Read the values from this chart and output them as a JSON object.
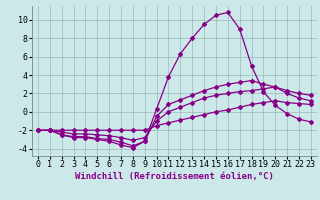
{
  "xlabel": "Windchill (Refroidissement éolien,°C)",
  "bg_color": "#cce8e8",
  "line_color": "#880088",
  "grid_color": "#99bbbb",
  "xlim": [
    -0.5,
    23.5
  ],
  "ylim": [
    -4.8,
    11.5
  ],
  "yticks": [
    -4,
    -2,
    0,
    2,
    4,
    6,
    8,
    10
  ],
  "xticks": [
    0,
    1,
    2,
    3,
    4,
    5,
    6,
    7,
    8,
    9,
    10,
    11,
    12,
    13,
    14,
    15,
    16,
    17,
    18,
    19,
    20,
    21,
    22,
    23
  ],
  "series1_x": [
    0,
    1,
    2,
    3,
    4,
    5,
    6,
    7,
    8,
    9,
    10,
    11,
    12,
    13,
    14,
    15,
    16,
    17,
    18,
    19,
    20,
    21,
    22,
    23
  ],
  "series1_y": [
    -2.0,
    -2.0,
    -2.0,
    -2.0,
    -2.0,
    -2.0,
    -2.0,
    -2.0,
    -2.0,
    -2.0,
    -1.5,
    -1.2,
    -0.9,
    -0.6,
    -0.3,
    0.0,
    0.2,
    0.5,
    0.8,
    1.0,
    1.2,
    1.0,
    0.9,
    0.8
  ],
  "series2_x": [
    0,
    1,
    2,
    3,
    4,
    5,
    6,
    7,
    8,
    9,
    10,
    11,
    12,
    13,
    14,
    15,
    16,
    17,
    18,
    19,
    20,
    21,
    22,
    23
  ],
  "series2_y": [
    -2.0,
    -2.0,
    -2.2,
    -2.4,
    -2.4,
    -2.5,
    -2.6,
    -2.8,
    -3.1,
    -2.8,
    -1.0,
    0.0,
    0.5,
    1.0,
    1.5,
    1.8,
    2.0,
    2.2,
    2.3,
    2.5,
    2.7,
    2.3,
    2.0,
    1.8
  ],
  "series3_x": [
    0,
    1,
    2,
    3,
    4,
    5,
    6,
    7,
    8,
    9,
    10,
    11,
    12,
    13,
    14,
    15,
    16,
    17,
    18,
    19,
    20,
    21,
    22,
    23
  ],
  "series3_y": [
    -2.0,
    -2.0,
    -2.5,
    -2.7,
    -2.7,
    -2.9,
    -3.0,
    -3.3,
    -3.7,
    -3.2,
    -0.5,
    0.8,
    1.3,
    1.8,
    2.3,
    2.7,
    3.0,
    3.2,
    3.4,
    3.0,
    2.7,
    2.0,
    1.5,
    1.2
  ],
  "series4_x": [
    1,
    2,
    3,
    4,
    5,
    6,
    7,
    8,
    9,
    10,
    11,
    12,
    13,
    14,
    15,
    16,
    17,
    18,
    19,
    20,
    21,
    22,
    23
  ],
  "series4_y": [
    -2.0,
    -2.5,
    -2.8,
    -2.8,
    -3.0,
    -3.2,
    -3.6,
    -3.9,
    -3.2,
    0.3,
    3.8,
    6.3,
    8.0,
    9.5,
    10.5,
    10.8,
    9.0,
    5.0,
    2.2,
    0.7,
    -0.2,
    -0.8,
    -1.1
  ],
  "xlabel_fontsize": 6.5,
  "tick_fontsize": 6.0,
  "line_width": 0.9,
  "marker": "D",
  "markersize": 2.0
}
